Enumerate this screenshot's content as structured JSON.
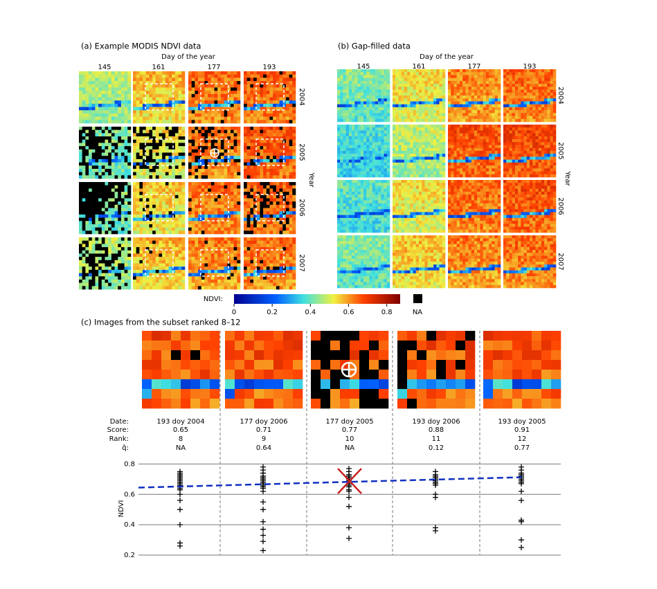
{
  "panel_a": {
    "title": "(a) Example MODIS NDVI data",
    "x_label": "Day of the year",
    "columns": [
      "145",
      "161",
      "177",
      "193"
    ],
    "y_label": "Year",
    "rows": [
      "2004",
      "2005",
      "2006",
      "2007"
    ]
  },
  "panel_b": {
    "title": "(b) Gap-filled data",
    "x_label": "Day of the year",
    "columns": [
      "145",
      "161",
      "177",
      "193"
    ],
    "y_label": "Year",
    "rows": [
      "2004",
      "2005",
      "2006",
      "2007"
    ]
  },
  "colorbar": {
    "label": "NDVI:",
    "lim": [
      0,
      0.87
    ],
    "ticks": [
      0,
      0.2,
      0.4,
      0.6,
      0.8
    ],
    "na_label": "NA"
  },
  "panel_c": {
    "title": "(c) Images from the subset ranked 8–12",
    "row_labels": [
      "Date:",
      "Score:",
      "Rank:",
      "q̂:"
    ],
    "images": [
      {
        "date": "193 doy 2004",
        "score": 0.65,
        "rank": 8,
        "q": "NA"
      },
      {
        "date": "177 doy 2006",
        "score": 0.71,
        "rank": 9,
        "q": 0.64
      },
      {
        "date": "177 doy 2005",
        "score": 0.77,
        "rank": 10,
        "q": "NA"
      },
      {
        "date": "193 doy 2006",
        "score": 0.88,
        "rank": 11,
        "q": 0.12
      },
      {
        "date": "193 doy 2005",
        "score": 0.91,
        "rank": 12,
        "q": 0.77
      }
    ]
  },
  "chart_data": {
    "type": "strip",
    "y_label": "NDVI",
    "ylim": [
      0.2,
      0.82
    ],
    "yticks": [
      0.2,
      0.4,
      0.6,
      0.8
    ],
    "grid": true,
    "color": "#000000",
    "groups": [
      [
        0.75,
        0.74,
        0.73,
        0.72,
        0.71,
        0.7,
        0.69,
        0.68,
        0.67,
        0.66,
        0.65,
        0.64,
        0.63,
        0.6,
        0.56,
        0.5,
        0.4,
        0.28,
        0.26
      ],
      [
        0.78,
        0.76,
        0.74,
        0.72,
        0.71,
        0.7,
        0.69,
        0.68,
        0.67,
        0.66,
        0.65,
        0.64,
        0.62,
        0.55,
        0.5,
        0.42,
        0.37,
        0.33,
        0.29,
        0.23
      ],
      [
        0.77,
        0.75,
        0.73,
        0.72,
        0.71,
        0.7,
        0.69,
        0.68,
        0.67,
        0.66,
        0.65,
        0.63,
        0.62,
        0.58,
        0.52,
        0.38,
        0.31
      ],
      [
        0.75,
        0.73,
        0.72,
        0.71,
        0.7,
        0.69,
        0.68,
        0.67,
        0.66,
        0.6,
        0.58,
        0.38,
        0.36
      ],
      [
        0.78,
        0.76,
        0.74,
        0.73,
        0.72,
        0.71,
        0.7,
        0.69,
        0.68,
        0.67,
        0.62,
        0.56,
        0.43,
        0.42,
        0.3,
        0.25
      ]
    ],
    "trend": {
      "color": "#1030c0",
      "values": [
        0.652,
        0.713
      ]
    }
  }
}
